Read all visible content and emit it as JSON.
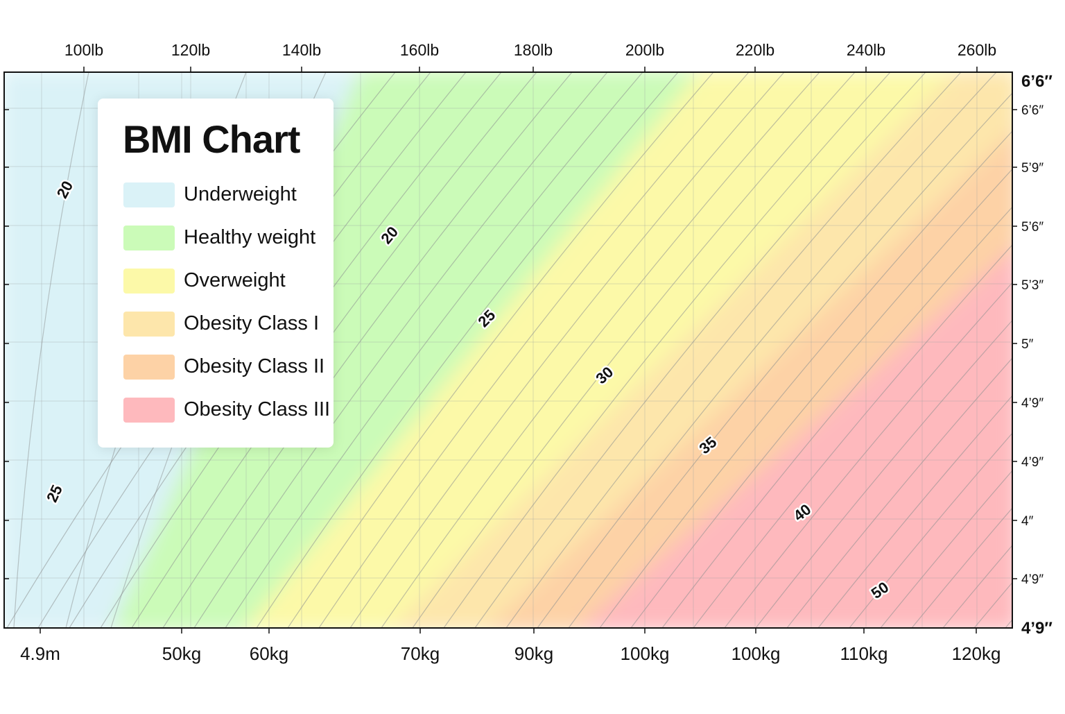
{
  "chart_data": {
    "type": "area",
    "title": "BMI Chart",
    "legend": {
      "placement": "top-left",
      "items": [
        {
          "label": "Underweight",
          "color": "#daf2f7"
        },
        {
          "label": "Healthy weight",
          "color": "#cbfbb8"
        },
        {
          "label": "Overweight",
          "color": "#fcf9a8"
        },
        {
          "label": "Obesity Class I",
          "color": "#fde6ab"
        },
        {
          "label": "Obesity Class II",
          "color": "#fdd2a6"
        },
        {
          "label": "Obesity Class III",
          "color": "#feb9bd"
        }
      ]
    },
    "top_axis_ticks": [
      "100lb",
      "120lb",
      "140lb",
      "160lb",
      "180lb",
      "200lb",
      "220lb",
      "240lb",
      "260lb"
    ],
    "bottom_axis_ticks": [
      "4.9m",
      "50kg",
      "60kg",
      "70kg",
      "90kg",
      "100kg",
      "100kg",
      "110kg",
      "120kg"
    ],
    "right_axis_ticks": [
      "6’6″",
      "6’6″",
      "5’9″",
      "5’6″",
      "5’3″",
      "5″",
      "4’9″",
      "4’9″",
      "4″",
      "4’9″",
      "4’9″"
    ],
    "contour_labels": [
      "20",
      "25",
      "20",
      "25",
      "30",
      "35",
      "40",
      "50"
    ],
    "grid": true
  }
}
